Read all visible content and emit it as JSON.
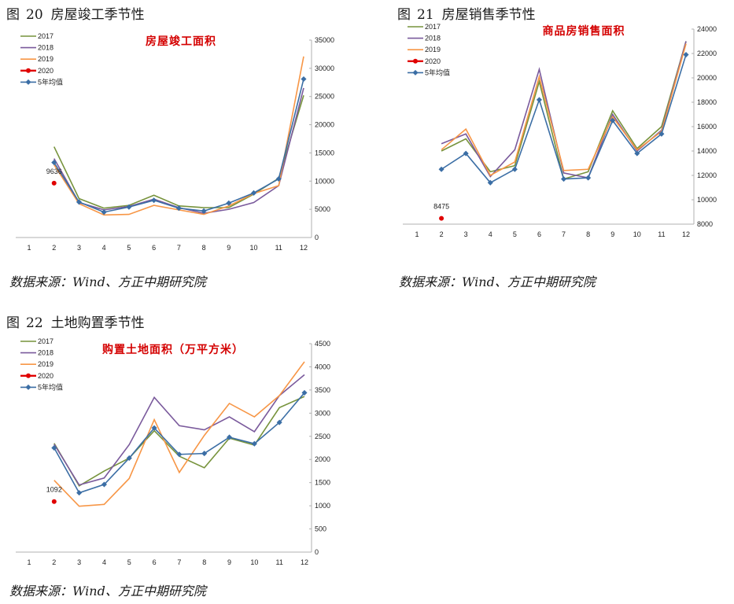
{
  "figures": [
    {
      "prefix": "图",
      "number": "20",
      "title": "房屋竣工季节性",
      "source": "数据来源：Wind、方正中期研究院"
    },
    {
      "prefix": "图",
      "number": "21",
      "title": "房屋销售季节性",
      "source": "数据来源：Wind、方正中期研究院"
    },
    {
      "prefix": "图",
      "number": "22",
      "title": "土地购置季节性",
      "source": "数据来源：Wind、方正中期研究院"
    }
  ],
  "colors": {
    "2017": "#77933c",
    "2018": "#7a5a9c",
    "2019": "#f79646",
    "2020": "#e00000",
    "avg": "#3b6ea5"
  },
  "chart_data": [
    {
      "type": "line",
      "title": "房屋竣工面积",
      "x": [
        1,
        2,
        3,
        4,
        5,
        6,
        7,
        8,
        9,
        10,
        11,
        12
      ],
      "ylim": [
        0,
        35000
      ],
      "yticks": [
        0,
        5000,
        10000,
        15000,
        20000,
        25000,
        30000,
        35000
      ],
      "legend_position": "top-left",
      "series": [
        {
          "name": "2017",
          "values": [
            null,
            16100,
            6900,
            5200,
            5700,
            7500,
            5600,
            5300,
            5300,
            7700,
            10500,
            25200
          ]
        },
        {
          "name": "2018",
          "values": [
            null,
            14000,
            6200,
            4900,
            5500,
            6800,
            5300,
            4300,
            5000,
            6200,
            9200,
            26500
          ]
        },
        {
          "name": "2019",
          "values": [
            null,
            12900,
            6000,
            4000,
            4100,
            5700,
            4900,
            4100,
            5600,
            7800,
            9200,
            32100
          ]
        },
        {
          "name": "2020",
          "values": [
            null,
            9636,
            null,
            null,
            null,
            null,
            null,
            null,
            null,
            null,
            null,
            null
          ]
        },
        {
          "name": "5年均值",
          "values": [
            null,
            13300,
            6300,
            4500,
            5400,
            6600,
            5200,
            4700,
            6100,
            7900,
            10400,
            28100
          ]
        }
      ],
      "data_labels": [
        {
          "series": "2020",
          "x": 2,
          "text": "9636"
        }
      ]
    },
    {
      "type": "line",
      "title": "商品房销售面积",
      "x": [
        1,
        2,
        3,
        4,
        5,
        6,
        7,
        8,
        9,
        10,
        11,
        12
      ],
      "ylim": [
        8000,
        24000
      ],
      "yticks": [
        8000,
        10000,
        12000,
        14000,
        16000,
        18000,
        20000,
        22000,
        24000
      ],
      "legend_position": "top-left",
      "series": [
        {
          "name": "2017",
          "values": [
            null,
            14000,
            15000,
            12300,
            12800,
            19700,
            11700,
            12300,
            17300,
            14200,
            16000,
            23000
          ]
        },
        {
          "name": "2018",
          "values": [
            null,
            14600,
            15400,
            11900,
            14100,
            20700,
            12200,
            11800,
            17000,
            14000,
            15700,
            23000
          ]
        },
        {
          "name": "2019",
          "values": [
            null,
            14100,
            15800,
            12000,
            13100,
            20100,
            12400,
            12500,
            16800,
            14100,
            15600,
            22800
          ]
        },
        {
          "name": "2020",
          "values": [
            null,
            8475,
            null,
            null,
            null,
            null,
            null,
            null,
            null,
            null,
            null,
            null
          ]
        },
        {
          "name": "5年均值",
          "values": [
            null,
            12500,
            13800,
            11400,
            12500,
            18200,
            11700,
            11800,
            16500,
            13800,
            15400,
            21900
          ]
        }
      ],
      "data_labels": [
        {
          "series": "2020",
          "x": 2,
          "text": "8475"
        }
      ]
    },
    {
      "type": "line",
      "title": "购置土地面积（万平方米）",
      "x": [
        1,
        2,
        3,
        4,
        5,
        6,
        7,
        8,
        9,
        10,
        11,
        12
      ],
      "ylim": [
        0,
        4500
      ],
      "yticks": [
        0,
        500,
        1000,
        1500,
        2000,
        2500,
        3000,
        3500,
        4000,
        4500
      ],
      "legend_position": "top-left",
      "series": [
        {
          "name": "2017",
          "values": [
            null,
            2350,
            1430,
            1750,
            2030,
            2620,
            2070,
            1820,
            2460,
            2310,
            3120,
            3360
          ]
        },
        {
          "name": "2018",
          "values": [
            null,
            2330,
            1450,
            1600,
            2320,
            3340,
            2730,
            2640,
            2920,
            2600,
            3380,
            3830
          ]
        },
        {
          "name": "2019",
          "values": [
            null,
            1550,
            990,
            1030,
            1590,
            2860,
            1720,
            2520,
            3210,
            2920,
            3380,
            4110
          ]
        },
        {
          "name": "2020",
          "values": [
            null,
            1092,
            null,
            null,
            null,
            null,
            null,
            null,
            null,
            null,
            null,
            null
          ]
        },
        {
          "name": "5年均值",
          "values": [
            null,
            2250,
            1280,
            1460,
            2030,
            2680,
            2110,
            2130,
            2480,
            2340,
            2800,
            3440
          ]
        }
      ],
      "data_labels": [
        {
          "series": "2020",
          "x": 2,
          "text": "1092"
        }
      ]
    }
  ]
}
